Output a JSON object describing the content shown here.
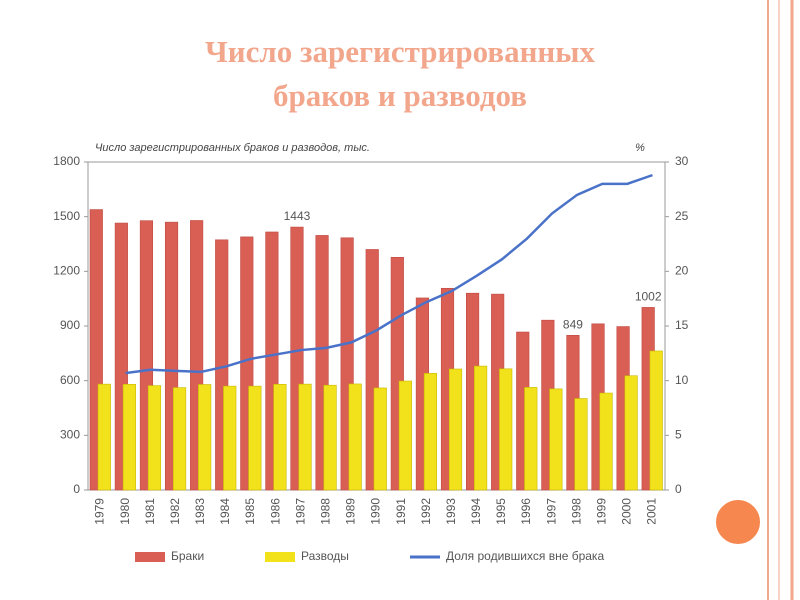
{
  "chart_data": {
    "type": "bar",
    "title": "Число зарегистрированных браков и разводов",
    "subtitle": "Число зарегистрированных браков и разводов, тыс.",
    "y2_label": "%",
    "categories": [
      "1979",
      "1980",
      "1981",
      "1982",
      "1983",
      "1984",
      "1985",
      "1986",
      "1987",
      "1988",
      "1989",
      "1990",
      "1991",
      "1992",
      "1993",
      "1994",
      "1995",
      "1996",
      "1997",
      "1998",
      "1999",
      "2000",
      "2001"
    ],
    "series": [
      {
        "name": "Браки",
        "type": "bar",
        "color": "#d95f55",
        "values": [
          1539,
          1465,
          1478,
          1470,
          1479,
          1373,
          1389,
          1416,
          1443,
          1397,
          1384,
          1320,
          1277,
          1054,
          1107,
          1080,
          1075,
          867,
          932,
          849,
          912,
          897,
          1002
        ],
        "value_labels": [
          null,
          null,
          null,
          null,
          null,
          null,
          null,
          null,
          "1443",
          null,
          null,
          null,
          null,
          null,
          null,
          null,
          null,
          null,
          null,
          "849",
          null,
          null,
          "1002"
        ]
      },
      {
        "name": "Разводы",
        "type": "bar",
        "color": "#f2e21c",
        "values": [
          581,
          580,
          573,
          562,
          579,
          570,
          570,
          580,
          581,
          575,
          582,
          560,
          598,
          640,
          664,
          680,
          665,
          563,
          555,
          502,
          532,
          627,
          763
        ]
      },
      {
        "name": "Доля родившихся вне брака",
        "type": "line",
        "axis": "y2",
        "color": "#4a72c8",
        "values": [
          null,
          10.7,
          11.0,
          10.9,
          10.8,
          11.3,
          12.0,
          12.4,
          12.8,
          13.0,
          13.5,
          14.6,
          16.0,
          17.2,
          18.2,
          19.6,
          21.1,
          23.0,
          25.3,
          27.0,
          28.0,
          28.0,
          28.8
        ]
      }
    ],
    "ylim": [
      0,
      1800
    ],
    "yticks": [
      0,
      300,
      600,
      900,
      1200,
      1500,
      1800
    ],
    "y2lim": [
      0,
      30
    ],
    "y2ticks": [
      0,
      5,
      10,
      15,
      20,
      25,
      30
    ],
    "grid": false
  }
}
